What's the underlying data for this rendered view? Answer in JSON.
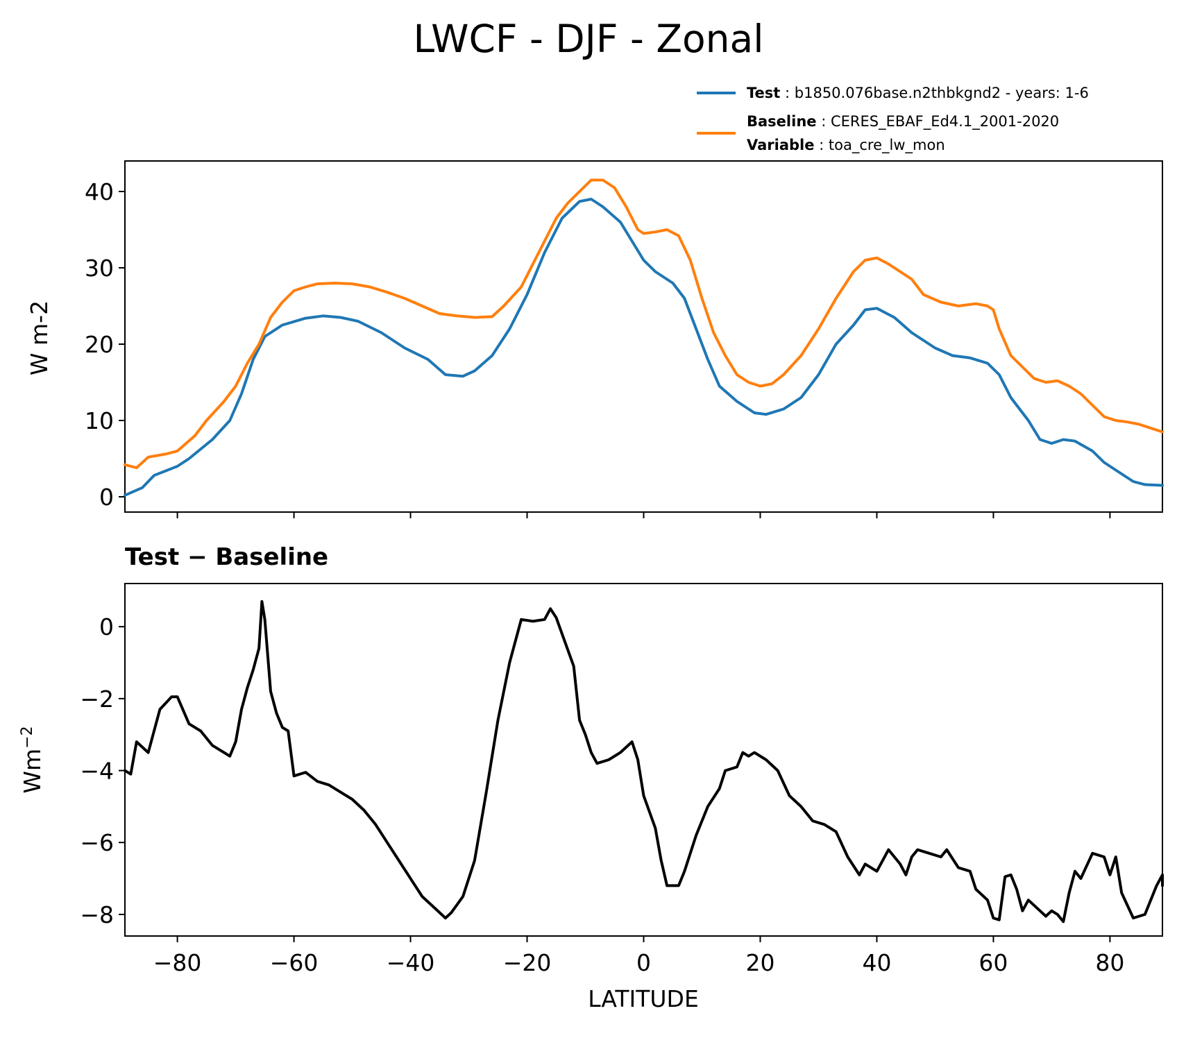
{
  "figure": {
    "title": "LWCF - DJF - Zonal",
    "legend": {
      "test_key": "Test",
      "test_value": "b1850.076base.n2thbkgnd2 - years: 1-6",
      "baseline_key": "Baseline",
      "baseline_value": "CERES_EBAF_Ed4.1_2001-2020",
      "variable_key": "Variable",
      "variable_value": "toa_cre_lw_mon",
      "sep": " : "
    },
    "xlabel": "LATITUDE",
    "top_ylabel": "W m-2",
    "bottom_title": "Test − Baseline",
    "bottom_ylabel": "Wm",
    "bottom_ylabel_sup": "−2"
  },
  "chart_data": [
    {
      "type": "line",
      "panel": "top",
      "xlim": [
        -89,
        89
      ],
      "ylim": [
        -2,
        44
      ],
      "xticks": [
        "−80",
        "−60",
        "−40",
        "−20",
        "0",
        "20",
        "40",
        "60",
        "80"
      ],
      "yticks": [
        "0",
        "10",
        "20",
        "30",
        "40"
      ],
      "ytick_values": [
        0,
        10,
        20,
        30,
        40
      ],
      "ylabel": "W m-2",
      "series": [
        {
          "name": "Test",
          "color": "#1f77b4",
          "points": [
            [
              -89,
              0.2
            ],
            [
              -86,
              1.2
            ],
            [
              -84,
              2.8
            ],
            [
              -80,
              4.0
            ],
            [
              -78,
              5.0
            ],
            [
              -74,
              7.5
            ],
            [
              -71,
              10.0
            ],
            [
              -69,
              13.5
            ],
            [
              -67,
              18.0
            ],
            [
              -65,
              21.0
            ],
            [
              -62,
              22.5
            ],
            [
              -58,
              23.4
            ],
            [
              -55,
              23.7
            ],
            [
              -52,
              23.5
            ],
            [
              -49,
              23.0
            ],
            [
              -45,
              21.5
            ],
            [
              -41,
              19.5
            ],
            [
              -37,
              18.0
            ],
            [
              -34,
              16.0
            ],
            [
              -31,
              15.8
            ],
            [
              -29,
              16.5
            ],
            [
              -26,
              18.5
            ],
            [
              -23,
              22.0
            ],
            [
              -20,
              26.5
            ],
            [
              -17,
              32.0
            ],
            [
              -14,
              36.5
            ],
            [
              -11,
              38.7
            ],
            [
              -9,
              39.0
            ],
            [
              -7,
              38.0
            ],
            [
              -4,
              36.0
            ],
            [
              -2,
              33.5
            ],
            [
              0,
              31.0
            ],
            [
              2,
              29.5
            ],
            [
              5,
              28.0
            ],
            [
              7,
              26.0
            ],
            [
              9,
              22.0
            ],
            [
              11,
              18.0
            ],
            [
              13,
              14.5
            ],
            [
              16,
              12.5
            ],
            [
              19,
              11.0
            ],
            [
              21,
              10.8
            ],
            [
              24,
              11.5
            ],
            [
              27,
              13.0
            ],
            [
              30,
              16.0
            ],
            [
              33,
              20.0
            ],
            [
              36,
              22.5
            ],
            [
              38,
              24.5
            ],
            [
              40,
              24.7
            ],
            [
              43,
              23.5
            ],
            [
              46,
              21.5
            ],
            [
              50,
              19.5
            ],
            [
              53,
              18.5
            ],
            [
              56,
              18.2
            ],
            [
              59,
              17.5
            ],
            [
              61,
              16.0
            ],
            [
              63,
              13.0
            ],
            [
              66,
              10.0
            ],
            [
              68,
              7.5
            ],
            [
              70,
              7.0
            ],
            [
              72,
              7.5
            ],
            [
              74,
              7.3
            ],
            [
              77,
              6.0
            ],
            [
              79,
              4.5
            ],
            [
              82,
              3.0
            ],
            [
              84,
              2.0
            ],
            [
              86,
              1.6
            ],
            [
              89,
              1.5
            ]
          ]
        },
        {
          "name": "Baseline",
          "color": "#ff7f0e",
          "points": [
            [
              -89,
              4.2
            ],
            [
              -87,
              3.8
            ],
            [
              -85,
              5.2
            ],
            [
              -82,
              5.6
            ],
            [
              -80,
              6.0
            ],
            [
              -77,
              8.0
            ],
            [
              -75,
              10.0
            ],
            [
              -72,
              12.5
            ],
            [
              -70,
              14.5
            ],
            [
              -68,
              17.5
            ],
            [
              -66,
              20.0
            ],
            [
              -64,
              23.5
            ],
            [
              -62,
              25.5
            ],
            [
              -60,
              27.0
            ],
            [
              -58,
              27.5
            ],
            [
              -56,
              27.9
            ],
            [
              -53,
              28.0
            ],
            [
              -50,
              27.9
            ],
            [
              -47,
              27.5
            ],
            [
              -44,
              26.8
            ],
            [
              -41,
              26.0
            ],
            [
              -38,
              25.0
            ],
            [
              -35,
              24.0
            ],
            [
              -32,
              23.7
            ],
            [
              -29,
              23.5
            ],
            [
              -26,
              23.6
            ],
            [
              -24,
              25.0
            ],
            [
              -21,
              27.5
            ],
            [
              -19,
              30.5
            ],
            [
              -17,
              33.5
            ],
            [
              -15,
              36.5
            ],
            [
              -13,
              38.5
            ],
            [
              -11,
              40.0
            ],
            [
              -9,
              41.5
            ],
            [
              -7,
              41.5
            ],
            [
              -5,
              40.5
            ],
            [
              -3,
              38.0
            ],
            [
              -1,
              35.0
            ],
            [
              0,
              34.5
            ],
            [
              2,
              34.7
            ],
            [
              4,
              35.0
            ],
            [
              6,
              34.2
            ],
            [
              8,
              31.0
            ],
            [
              10,
              26.0
            ],
            [
              12,
              21.5
            ],
            [
              14,
              18.5
            ],
            [
              16,
              16.0
            ],
            [
              18,
              15.0
            ],
            [
              20,
              14.5
            ],
            [
              22,
              14.8
            ],
            [
              24,
              16.0
            ],
            [
              27,
              18.5
            ],
            [
              30,
              22.0
            ],
            [
              33,
              26.0
            ],
            [
              36,
              29.5
            ],
            [
              38,
              31.0
            ],
            [
              40,
              31.3
            ],
            [
              42,
              30.5
            ],
            [
              44,
              29.5
            ],
            [
              46,
              28.5
            ],
            [
              48,
              26.5
            ],
            [
              51,
              25.5
            ],
            [
              54,
              25.0
            ],
            [
              57,
              25.3
            ],
            [
              59,
              25.0
            ],
            [
              60,
              24.5
            ],
            [
              61,
              22.0
            ],
            [
              63,
              18.5
            ],
            [
              65,
              17.0
            ],
            [
              67,
              15.5
            ],
            [
              69,
              15.0
            ],
            [
              71,
              15.2
            ],
            [
              73,
              14.5
            ],
            [
              75,
              13.5
            ],
            [
              77,
              12.0
            ],
            [
              79,
              10.5
            ],
            [
              81,
              10.0
            ],
            [
              83,
              9.8
            ],
            [
              85,
              9.5
            ],
            [
              87,
              9.0
            ],
            [
              89,
              8.5
            ]
          ]
        }
      ]
    },
    {
      "type": "line",
      "panel": "bottom",
      "title": "Test − Baseline",
      "xlim": [
        -89,
        89
      ],
      "ylim": [
        -8.6,
        1.2
      ],
      "xticks": [
        "−80",
        "−60",
        "−40",
        "−20",
        "0",
        "20",
        "40",
        "60",
        "80"
      ],
      "xtick_values": [
        -80,
        -60,
        -40,
        -20,
        0,
        20,
        40,
        60,
        80
      ],
      "yticks": [
        "0",
        "−2",
        "−4",
        "−6",
        "−8"
      ],
      "ytick_values": [
        0,
        -2,
        -4,
        -6,
        -8
      ],
      "xlabel": "LATITUDE",
      "series": [
        {
          "color": "#000000",
          "points": [
            [
              -89,
              -4.0
            ],
            [
              -88,
              -4.1
            ],
            [
              -87,
              -3.2
            ],
            [
              -85,
              -3.5
            ],
            [
              -83,
              -2.3
            ],
            [
              -81,
              -1.95
            ],
            [
              -80,
              -1.95
            ],
            [
              -78,
              -2.7
            ],
            [
              -76,
              -2.9
            ],
            [
              -74,
              -3.3
            ],
            [
              -72,
              -3.5
            ],
            [
              -71,
              -3.6
            ],
            [
              -70,
              -3.2
            ],
            [
              -69,
              -2.3
            ],
            [
              -68,
              -1.7
            ],
            [
              -67,
              -1.2
            ],
            [
              -66,
              -0.6
            ],
            [
              -65.5,
              0.7
            ],
            [
              -65,
              0.2
            ],
            [
              -64,
              -1.8
            ],
            [
              -63,
              -2.4
            ],
            [
              -62,
              -2.8
            ],
            [
              -61,
              -2.9
            ],
            [
              -60,
              -4.15
            ],
            [
              -58,
              -4.05
            ],
            [
              -56,
              -4.3
            ],
            [
              -54,
              -4.4
            ],
            [
              -52,
              -4.6
            ],
            [
              -50,
              -4.8
            ],
            [
              -48,
              -5.1
            ],
            [
              -46,
              -5.5
            ],
            [
              -44,
              -6.0
            ],
            [
              -42,
              -6.5
            ],
            [
              -40,
              -7.0
            ],
            [
              -38,
              -7.5
            ],
            [
              -36,
              -7.8
            ],
            [
              -34,
              -8.1
            ],
            [
              -33,
              -7.95
            ],
            [
              -31,
              -7.5
            ],
            [
              -29,
              -6.5
            ],
            [
              -27,
              -4.6
            ],
            [
              -25,
              -2.6
            ],
            [
              -23,
              -1.0
            ],
            [
              -21,
              0.2
            ],
            [
              -19,
              0.15
            ],
            [
              -17,
              0.2
            ],
            [
              -16,
              0.5
            ],
            [
              -15,
              0.25
            ],
            [
              -14,
              -0.2
            ],
            [
              -12,
              -1.1
            ],
            [
              -11,
              -2.6
            ],
            [
              -10,
              -3.0
            ],
            [
              -9,
              -3.5
            ],
            [
              -8,
              -3.8
            ],
            [
              -6,
              -3.7
            ],
            [
              -4,
              -3.5
            ],
            [
              -2,
              -3.2
            ],
            [
              -1,
              -3.7
            ],
            [
              0,
              -4.7
            ],
            [
              2,
              -5.6
            ],
            [
              3,
              -6.5
            ],
            [
              4,
              -7.2
            ],
            [
              6,
              -7.2
            ],
            [
              7,
              -6.8
            ],
            [
              9,
              -5.8
            ],
            [
              11,
              -5.0
            ],
            [
              13,
              -4.5
            ],
            [
              14,
              -4.0
            ],
            [
              16,
              -3.9
            ],
            [
              17,
              -3.5
            ],
            [
              18,
              -3.6
            ],
            [
              19,
              -3.5
            ],
            [
              21,
              -3.7
            ],
            [
              23,
              -4.0
            ],
            [
              25,
              -4.7
            ],
            [
              27,
              -5.0
            ],
            [
              29,
              -5.4
            ],
            [
              31,
              -5.5
            ],
            [
              33,
              -5.7
            ],
            [
              35,
              -6.4
            ],
            [
              37,
              -6.9
            ],
            [
              38,
              -6.6
            ],
            [
              40,
              -6.8
            ],
            [
              42,
              -6.2
            ],
            [
              44,
              -6.6
            ],
            [
              45,
              -6.9
            ],
            [
              46,
              -6.4
            ],
            [
              47,
              -6.2
            ],
            [
              49,
              -6.3
            ],
            [
              51,
              -6.4
            ],
            [
              52,
              -6.2
            ],
            [
              54,
              -6.7
            ],
            [
              56,
              -6.8
            ],
            [
              57,
              -7.3
            ],
            [
              59,
              -7.6
            ],
            [
              60,
              -8.1
            ],
            [
              61,
              -8.15
            ],
            [
              62,
              -6.95
            ],
            [
              63,
              -6.9
            ],
            [
              64,
              -7.3
            ],
            [
              65,
              -7.9
            ],
            [
              66,
              -7.6
            ],
            [
              68,
              -7.9
            ],
            [
              69,
              -8.05
            ],
            [
              70,
              -7.9
            ],
            [
              71,
              -8.0
            ],
            [
              72,
              -8.2
            ],
            [
              73,
              -7.4
            ],
            [
              74,
              -6.8
            ],
            [
              75,
              -7.0
            ],
            [
              77,
              -6.3
            ],
            [
              79,
              -6.4
            ],
            [
              80,
              -6.9
            ],
            [
              81,
              -6.4
            ],
            [
              82,
              -7.4
            ],
            [
              84,
              -8.1
            ],
            [
              86,
              -8.0
            ],
            [
              88,
              -7.2
            ],
            [
              89,
              -6.9
            ],
            [
              89,
              -7.2
            ]
          ]
        }
      ]
    }
  ]
}
